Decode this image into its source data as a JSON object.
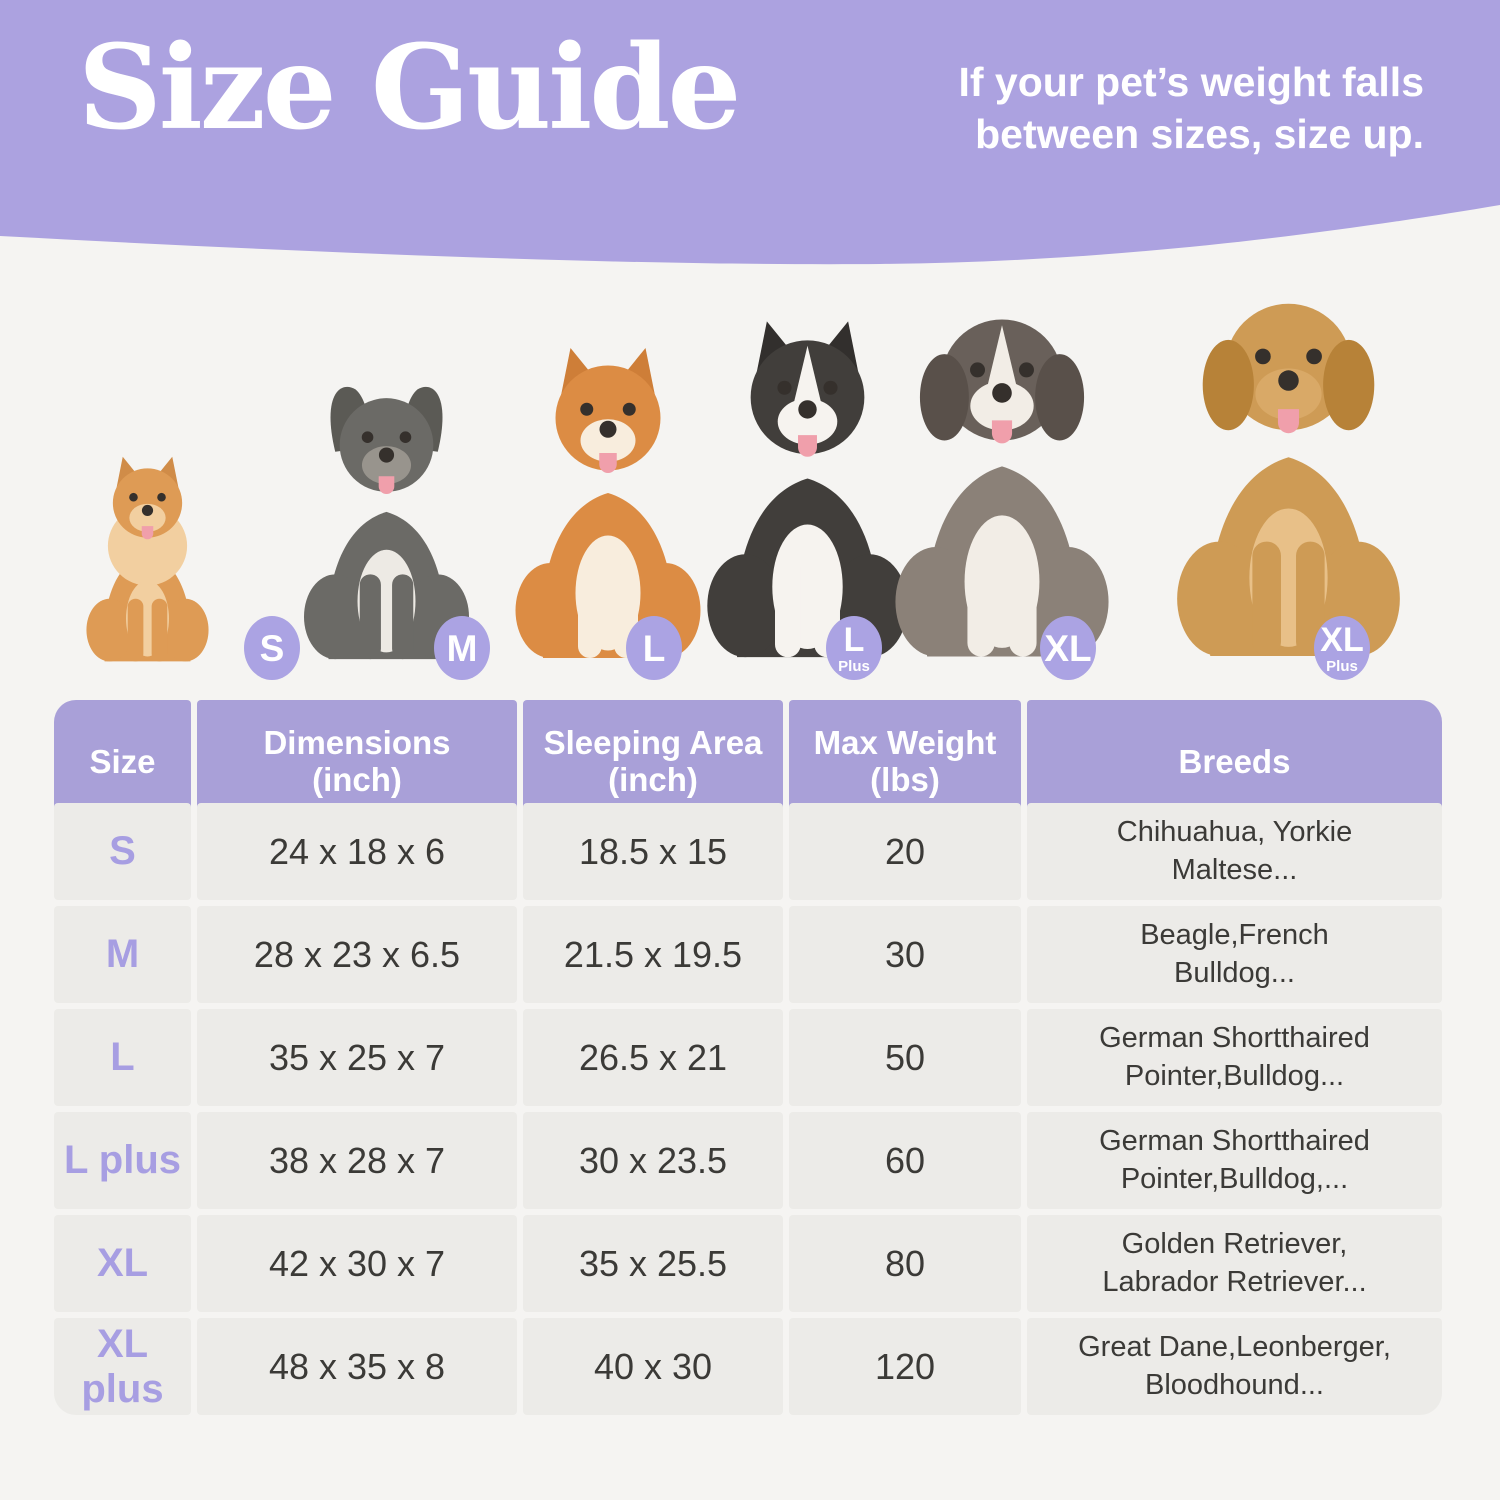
{
  "page": {
    "background": "#F5F4F2"
  },
  "header": {
    "title": "Size Guide",
    "note_line1": "If your pet’s weight falls",
    "note_line2": "between sizes, size up.",
    "wave_color": "#ACA2E0",
    "text_color": "#FFFFFF"
  },
  "badge_color": "#ABA3E3",
  "dogs": [
    {
      "name": "pomeranian",
      "badge": "S",
      "badge_sub": "",
      "colors": {
        "body": "#DE9B55",
        "chest": "#F2CFA0",
        "muzzle": "#F2CFA0",
        "ear": "#D08C48",
        "legs": "#DE9B55"
      }
    },
    {
      "name": "french-bulldog",
      "badge": "M",
      "badge_sub": "",
      "colors": {
        "body": "#6B6A66",
        "chest": "#EDEAE4",
        "muzzle": "#98948D",
        "ear": "#5B5A55",
        "legs": "#6B6A66"
      }
    },
    {
      "name": "shiba-inu",
      "badge": "L",
      "badge_sub": "",
      "colors": {
        "body": "#DC8C44",
        "chest": "#F8EDDD",
        "muzzle": "#F8EDDD",
        "ear": "#CE7E38",
        "legs": "#F8EDDD"
      }
    },
    {
      "name": "border-collie",
      "badge": "L",
      "badge_sub": "Plus",
      "colors": {
        "body": "#413E3B",
        "head": "#413E3B",
        "chest": "#F6F3EF",
        "muzzle": "#F6F3EF",
        "ear": "#322F2D",
        "legs": "#F6F3EF"
      }
    },
    {
      "name": "australian-shepherd",
      "badge": "XL",
      "badge_sub": "",
      "colors": {
        "body": "#8B8178",
        "head": "#69605A",
        "chest": "#F2EDE6",
        "muzzle": "#F2EDE6",
        "ear": "#59504A",
        "legs": "#F2EDE6"
      }
    },
    {
      "name": "golden-retriever",
      "badge": "XL",
      "badge_sub": "Plus",
      "colors": {
        "body": "#CE9B55",
        "chest": "#E8C088",
        "muzzle": "#D9A967",
        "ear": "#B78238",
        "legs": "#CE9B55"
      }
    }
  ],
  "table": {
    "header_bg": "#A9A0D8",
    "row_bg": "#ECEBE8",
    "size_text_color": "#A79EE2",
    "columns": [
      {
        "line1": "Size",
        "line2": ""
      },
      {
        "line1": "Dimensions",
        "line2": "(inch)"
      },
      {
        "line1": "Sleeping Area",
        "line2": "(inch)"
      },
      {
        "line1": "Max Weight",
        "line2": "(lbs)"
      },
      {
        "line1": "Breeds",
        "line2": ""
      }
    ],
    "rows": [
      {
        "size": "S",
        "dimensions": "24 x 18 x 6",
        "sleeping_area": "18.5 x 15",
        "max_weight": "20",
        "breeds": "Chihuahua, Yorkie\nMaltese..."
      },
      {
        "size": "M",
        "dimensions": "28 x 23 x 6.5",
        "sleeping_area": "21.5 x 19.5",
        "max_weight": "30",
        "breeds": "Beagle,French\nBulldog..."
      },
      {
        "size": "L",
        "dimensions": "35 x 25 x 7",
        "sleeping_area": "26.5 x 21",
        "max_weight": "50",
        "breeds": "German Shortthaired\nPointer,Bulldog..."
      },
      {
        "size": "L plus",
        "dimensions": "38 x 28 x 7",
        "sleeping_area": "30 x 23.5",
        "max_weight": "60",
        "breeds": "German Shortthaired\nPointer,Bulldog,..."
      },
      {
        "size": "XL",
        "dimensions": "42 x 30 x 7",
        "sleeping_area": "35 x 25.5",
        "max_weight": "80",
        "breeds": "Golden Retriever,\nLabrador Retriever..."
      },
      {
        "size": "XL plus",
        "dimensions": "48 x 35 x 8",
        "sleeping_area": "40 x 30",
        "max_weight": "120",
        "breeds": "Great Dane,Leonberger,\nBloodhound..."
      }
    ]
  }
}
